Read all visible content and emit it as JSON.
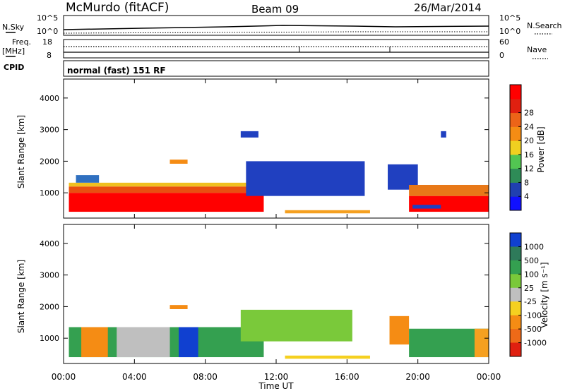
{
  "header": {
    "station": "McMurdo (fitACF)",
    "beam": "Beam 09",
    "date": "26/Mar/2014"
  },
  "meta_panels": {
    "nsky_label": "N.Sky",
    "nsearch_label": "N.Search",
    "freq_label_1": "Freq.",
    "freq_label_2": "[MHz]",
    "nave_label": "Nave",
    "cpid_label": "CPID",
    "cpid_value": "normal (fast) 151 RF",
    "left_ticks_top": [
      "10^5",
      "10^0"
    ],
    "right_ticks_top": [
      "10^5",
      "10^0"
    ],
    "freq_ticks": [
      "18",
      "8"
    ],
    "nave_ticks": [
      "60",
      "0"
    ]
  },
  "chart_data": [
    {
      "type": "heatmap",
      "name": "power",
      "ylabel": "Slant Range [km]",
      "xlabel": "Time UT",
      "x_ticks": [
        "00:00",
        "04:00",
        "08:00",
        "12:00",
        "16:00",
        "20:00",
        "00:00"
      ],
      "x_range_hours": [
        0,
        24
      ],
      "y_ticks": [
        1000,
        2000,
        3000,
        4000
      ],
      "ylim": [
        200,
        4600
      ],
      "colorbar": {
        "label": "Power [dB]",
        "ticks": [
          "4",
          "8",
          "12",
          "16",
          "20",
          "24",
          "28"
        ],
        "colors": [
          "#1010ff",
          "#2040b0",
          "#2e8b57",
          "#52c552",
          "#f0d020",
          "#f58c14",
          "#ec6418",
          "#e02010",
          "#ff0000"
        ]
      },
      "regions": [
        {
          "t": [
            0.3,
            11.3
          ],
          "r": [
            400,
            1000
          ],
          "color": "#ff0000"
        },
        {
          "t": [
            0.3,
            11.3
          ],
          "r": [
            1000,
            1200
          ],
          "color": "#e85010"
        },
        {
          "t": [
            0.3,
            11.3
          ],
          "r": [
            1200,
            1320
          ],
          "color": "#f0c020"
        },
        {
          "t": [
            0.7,
            2.0
          ],
          "r": [
            1320,
            1560
          ],
          "color": "#3070c0"
        },
        {
          "t": [
            10.3,
            17.0
          ],
          "r": [
            900,
            2000
          ],
          "color": "#2040c0"
        },
        {
          "t": [
            12.5,
            17.3
          ],
          "r": [
            350,
            450
          ],
          "color": "#f5a020"
        },
        {
          "t": [
            18.3,
            20.0
          ],
          "r": [
            1100,
            1900
          ],
          "color": "#2040c0"
        },
        {
          "t": [
            19.5,
            24.0
          ],
          "r": [
            400,
            900
          ],
          "color": "#ff0000"
        },
        {
          "t": [
            19.5,
            24.0
          ],
          "r": [
            900,
            1250
          ],
          "color": "#e87818"
        },
        {
          "t": [
            19.7,
            21.3
          ],
          "r": [
            500,
            620
          ],
          "color": "#2040c0"
        },
        {
          "t": [
            10.0,
            11.0
          ],
          "r": [
            2750,
            2950
          ],
          "color": "#2040c0"
        },
        {
          "t": [
            6.0,
            7.0
          ],
          "r": [
            1920,
            2050
          ],
          "color": "#f58c14"
        },
        {
          "t": [
            21.3,
            21.6
          ],
          "r": [
            2750,
            2950
          ],
          "color": "#2040c0"
        }
      ]
    },
    {
      "type": "heatmap",
      "name": "velocity",
      "ylabel": "Slant Range [km]",
      "xlabel": "Time UT",
      "x_ticks": [
        "00:00",
        "04:00",
        "08:00",
        "12:00",
        "16:00",
        "20:00",
        "00:00"
      ],
      "x_range_hours": [
        0,
        24
      ],
      "y_ticks": [
        1000,
        2000,
        3000,
        4000
      ],
      "ylim": [
        200,
        4600
      ],
      "colorbar": {
        "label": "Velocity [m s⁻¹]",
        "ticks": [
          "1000",
          "500",
          "100",
          "25",
          "-25",
          "-100",
          "-500",
          "-1000"
        ],
        "colors": [
          "#1040d0",
          "#2e7a5a",
          "#34a050",
          "#7ac93a",
          "#bfbfbf",
          "#f5d020",
          "#f58c14",
          "#ee6a18",
          "#e02010"
        ]
      },
      "regions": [
        {
          "t": [
            0.3,
            11.3
          ],
          "r": [
            400,
            1350
          ],
          "color": "#34a050"
        },
        {
          "t": [
            1.0,
            2.5
          ],
          "r": [
            400,
            1350
          ],
          "color": "#f58c14"
        },
        {
          "t": [
            3.0,
            6.0
          ],
          "r": [
            400,
            1350
          ],
          "color": "#bfbfbf"
        },
        {
          "t": [
            6.5,
            7.6
          ],
          "r": [
            400,
            1350
          ],
          "color": "#1040d0"
        },
        {
          "t": [
            10.0,
            16.3
          ],
          "r": [
            900,
            1900
          ],
          "color": "#7ac93a"
        },
        {
          "t": [
            12.5,
            17.3
          ],
          "r": [
            350,
            450
          ],
          "color": "#f5d020"
        },
        {
          "t": [
            18.4,
            19.5
          ],
          "r": [
            800,
            1700
          ],
          "color": "#f58c14"
        },
        {
          "t": [
            19.5,
            24.0
          ],
          "r": [
            400,
            1300
          ],
          "color": "#34a050"
        },
        {
          "t": [
            23.2,
            24.0
          ],
          "r": [
            400,
            1300
          ],
          "color": "#f5a020"
        },
        {
          "t": [
            6.0,
            7.0
          ],
          "r": [
            1920,
            2050
          ],
          "color": "#f58c14"
        }
      ]
    }
  ]
}
